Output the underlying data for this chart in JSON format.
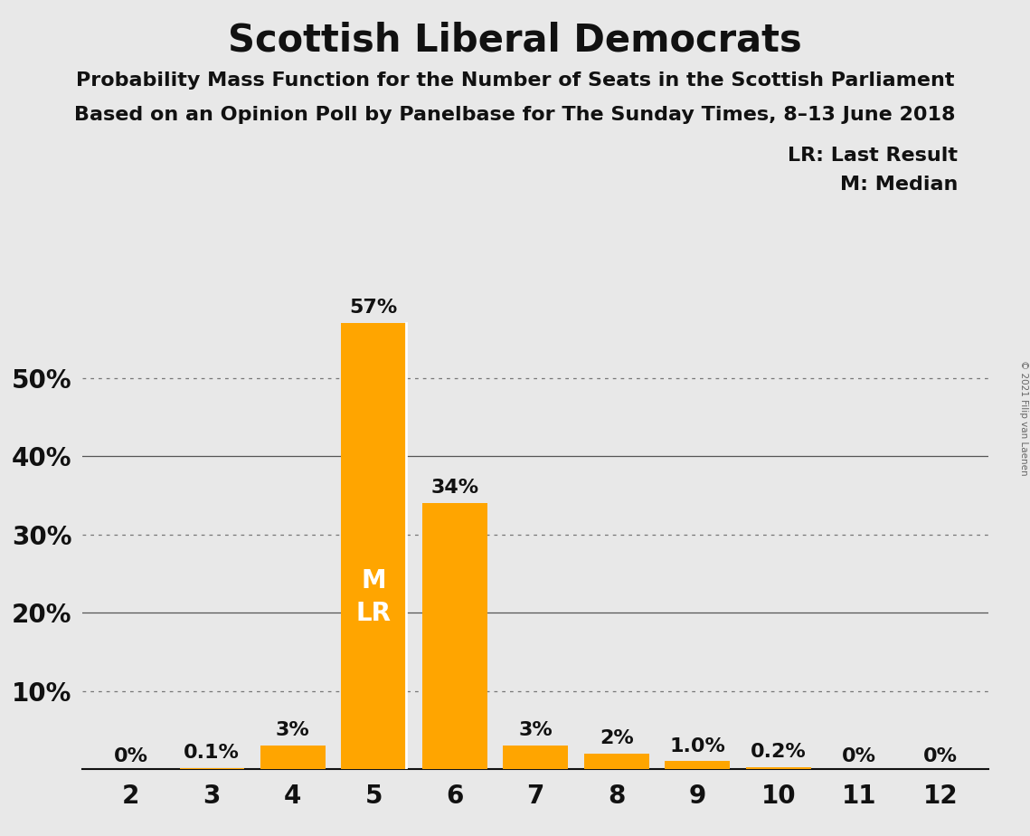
{
  "title": "Scottish Liberal Democrats",
  "subtitle1": "Probability Mass Function for the Number of Seats in the Scottish Parliament",
  "subtitle2": "Based on an Opinion Poll by Panelbase for The Sunday Times, 8–13 June 2018",
  "copyright": "© 2021 Filip van Laenen",
  "categories": [
    2,
    3,
    4,
    5,
    6,
    7,
    8,
    9,
    10,
    11,
    12
  ],
  "values": [
    0.0,
    0.1,
    3.0,
    57.0,
    34.0,
    3.0,
    2.0,
    1.0,
    0.2,
    0.0,
    0.0
  ],
  "bar_labels": [
    "0%",
    "0.1%",
    "3%",
    "57%",
    "34%",
    "3%",
    "2%",
    "1.0%",
    "0.2%",
    "0%",
    "0%"
  ],
  "bar_color": "#FFA500",
  "background_color": "#E8E8E8",
  "median_bar_seat": 5,
  "last_result_bar_seat": 5,
  "median_label": "M",
  "last_result_label": "LR",
  "legend_text1": "LR: Last Result",
  "legend_text2": "M: Median",
  "ytick_positions": [
    0,
    10,
    20,
    30,
    40,
    50
  ],
  "ytick_labels": [
    "",
    "10%",
    "20%",
    "30%",
    "40%",
    "50%"
  ],
  "dotted_yticks": [
    10,
    30,
    50
  ],
  "solid_yticks": [
    40
  ],
  "ylim": [
    0,
    62
  ],
  "title_fontsize": 30,
  "subtitle_fontsize": 16,
  "bar_label_fontsize": 16,
  "axis_tick_fontsize": 20,
  "legend_fontsize": 16,
  "ml_label_fontsize": 20,
  "bar_width": 0.8
}
